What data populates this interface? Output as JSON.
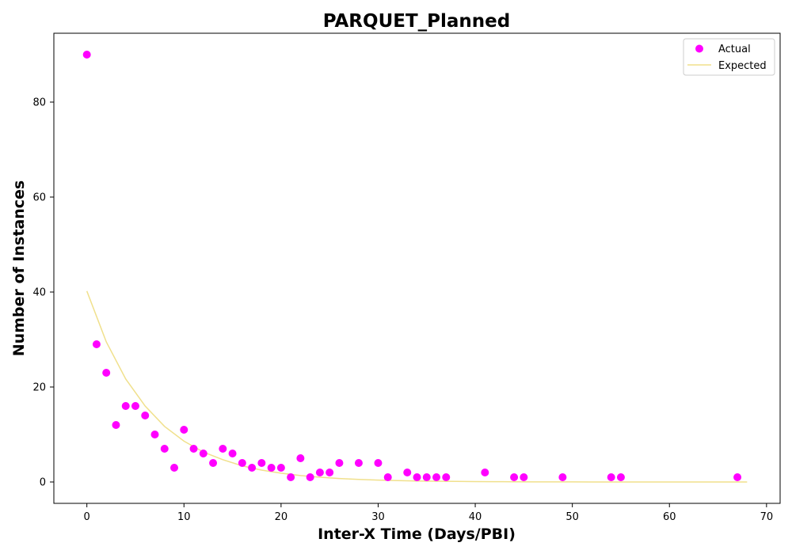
{
  "chart_data": {
    "type": "scatter",
    "title": "PARQUET_Planned",
    "xlabel": "Inter-X Time (Days/PBI)",
    "ylabel": "Number of Instances",
    "xlim": [
      -3.4,
      71.4
    ],
    "ylim": [
      -4.5,
      94.5
    ],
    "xticks": [
      0,
      10,
      20,
      30,
      40,
      50,
      60,
      70
    ],
    "yticks": [
      0,
      20,
      40,
      60,
      80
    ],
    "grid": false,
    "legend": "top-right",
    "series": [
      {
        "name": "Actual",
        "kind": "scatter",
        "color": "#ff00ff",
        "x": [
          0,
          1,
          2,
          3,
          4,
          5,
          6,
          7,
          8,
          9,
          10,
          11,
          12,
          13,
          14,
          15,
          16,
          17,
          18,
          19,
          20,
          21,
          22,
          23,
          24,
          25,
          26,
          28,
          30,
          31,
          33,
          34,
          35,
          36,
          37,
          41,
          44,
          45,
          49,
          54,
          55,
          67
        ],
        "y": [
          90,
          29,
          23,
          12,
          16,
          16,
          14,
          10,
          7,
          3,
          11,
          7,
          6,
          4,
          7,
          6,
          4,
          3,
          4,
          3,
          3,
          1,
          5,
          1,
          2,
          2,
          4,
          4,
          4,
          1,
          2,
          1,
          1,
          1,
          1,
          2,
          1,
          1,
          1,
          1,
          1,
          1
        ]
      },
      {
        "name": "Expected",
        "kind": "line",
        "color": "#f0e08c",
        "x": [
          0,
          2,
          4,
          6,
          8,
          10,
          12,
          14,
          16,
          18,
          20,
          22,
          24,
          26,
          28,
          30,
          32,
          34,
          36,
          38,
          40,
          42,
          44,
          46,
          48,
          50,
          52,
          54,
          56,
          58,
          60,
          62,
          64,
          66,
          68
        ],
        "y": [
          40.2,
          29.5,
          21.7,
          16.0,
          11.7,
          8.6,
          6.3,
          4.7,
          3.4,
          2.5,
          1.85,
          1.36,
          1.0,
          0.73,
          0.54,
          0.4,
          0.29,
          0.21,
          0.16,
          0.12,
          0.09,
          0.06,
          0.05,
          0.03,
          0.03,
          0.02,
          0.01,
          0.01,
          0.01,
          0.0,
          0.0,
          0.0,
          0.0,
          0.0,
          0.0
        ]
      }
    ]
  }
}
